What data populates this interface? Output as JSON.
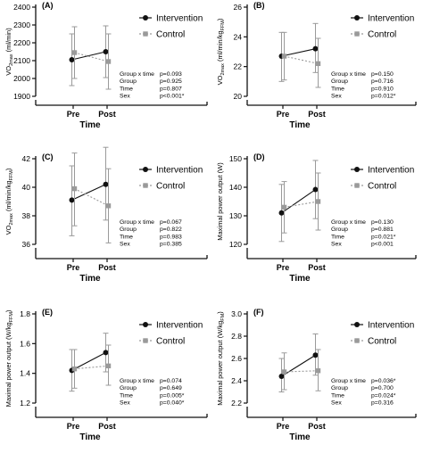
{
  "figure": {
    "accent_colors": {
      "intervention": "#111111",
      "control": "#9a9a9a",
      "error_bars": "#9a9a9a"
    }
  },
  "chart_data": [
    {
      "panel": "(A)",
      "type": "line",
      "ylabel": "VO2max (ml/min)",
      "ylabel_main": "VO",
      "ylabel_sub": "2max",
      "ylabel_rest": " (ml/min)",
      "ylim": [
        1900,
        2400
      ],
      "yticks": [
        "1900",
        "2000",
        "2100",
        "2200",
        "2300",
        "2400"
      ],
      "categories": [
        "Pre",
        "Post"
      ],
      "xlabel": "Time",
      "series": [
        {
          "name": "Intervention",
          "values": [
            2105,
            2150
          ],
          "err_low": [
            1960,
            2005
          ],
          "err_high": [
            2250,
            2295
          ]
        },
        {
          "name": "Control",
          "values": [
            2145,
            2095
          ],
          "err_low": [
            2000,
            1940
          ],
          "err_high": [
            2290,
            2250
          ]
        }
      ],
      "stats": [
        {
          "label": "Group x time",
          "value": "p=0.093"
        },
        {
          "label": "Group",
          "value": "p=0.925"
        },
        {
          "label": "Time",
          "value": "p=0.807"
        },
        {
          "label": "Sex",
          "value": "p<0.001*"
        }
      ],
      "legend": "top-right",
      "grid": false
    },
    {
      "panel": "(B)",
      "type": "line",
      "ylabel": "VO2max (ml/min/kgFFM)",
      "ylabel_main": "VO",
      "ylabel_sub": "2max",
      "ylabel_rest": " (ml/min/kg",
      "ylabel_sub2": "FFM",
      "ylabel_end": ")",
      "ylim": [
        20,
        26
      ],
      "yticks": [
        "20",
        "22",
        "24",
        "26"
      ],
      "categories": [
        "Pre",
        "Post"
      ],
      "xlabel": "Time",
      "series": [
        {
          "name": "Intervention",
          "values": [
            22.7,
            23.2
          ],
          "err_low": [
            21.0,
            21.6
          ],
          "err_high": [
            24.3,
            24.9
          ]
        },
        {
          "name": "Control",
          "values": [
            22.7,
            22.2
          ],
          "err_low": [
            21.1,
            20.6
          ],
          "err_high": [
            24.3,
            23.9
          ]
        }
      ],
      "stats": [
        {
          "label": "Group x time",
          "value": "p=0.150"
        },
        {
          "label": "Group",
          "value": "p=0.716"
        },
        {
          "label": "Time",
          "value": "p=0.910"
        },
        {
          "label": "Sex",
          "value": "p=0.012*"
        }
      ],
      "legend": "top-right",
      "grid": false
    },
    {
      "panel": "(C)",
      "type": "line",
      "ylabel": "VO2max (ml/min/kgFFM)",
      "ylabel_main": "VO",
      "ylabel_sub": "2max",
      "ylabel_rest": " (ml/min/kg",
      "ylabel_sub2": "FFM",
      "ylabel_end": ")",
      "ylim": [
        36,
        42
      ],
      "yticks": [
        "36",
        "38",
        "40",
        "42"
      ],
      "categories": [
        "Pre",
        "Post"
      ],
      "xlabel": "Time",
      "series": [
        {
          "name": "Intervention",
          "values": [
            39.1,
            40.2
          ],
          "err_low": [
            36.6,
            37.7
          ],
          "err_high": [
            41.5,
            42.8
          ]
        },
        {
          "name": "Control",
          "values": [
            39.9,
            38.7
          ],
          "err_low": [
            37.3,
            36.1
          ],
          "err_high": [
            42.4,
            41.3
          ]
        }
      ],
      "stats": [
        {
          "label": "Group x time",
          "value": "p=0.067"
        },
        {
          "label": "Group",
          "value": "p=0.822"
        },
        {
          "label": "Time",
          "value": "p=0.983"
        },
        {
          "label": "Sex",
          "value": "p=0.385"
        }
      ],
      "legend": "top-right",
      "grid": false
    },
    {
      "panel": "(D)",
      "type": "line",
      "ylabel": "Maximal power output (W)",
      "ylim": [
        120,
        150
      ],
      "yticks": [
        "120",
        "130",
        "140",
        "150"
      ],
      "categories": [
        "Pre",
        "Post"
      ],
      "xlabel": "Time",
      "series": [
        {
          "name": "Intervention",
          "values": [
            131.0,
            139.2
          ],
          "err_low": [
            121.0,
            129.0
          ],
          "err_high": [
            141.0,
            149.4
          ]
        },
        {
          "name": "Control",
          "values": [
            133.0,
            135.0
          ],
          "err_low": [
            124.0,
            125.0
          ],
          "err_high": [
            142.0,
            145.0
          ]
        }
      ],
      "stats": [
        {
          "label": "Group x time",
          "value": "p=0.130"
        },
        {
          "label": "Group",
          "value": "p=0.881"
        },
        {
          "label": "Time",
          "value": "p=0.021*"
        },
        {
          "label": "Sex",
          "value": "p<0.001"
        }
      ],
      "legend": "top-right",
      "grid": false
    },
    {
      "panel": "(E)",
      "type": "line",
      "ylabel": "Maximal power output (W/kgFFM)",
      "ylabel_main": "Maximal power output (W/kg",
      "ylabel_sub": "FFM",
      "ylabel_rest": ")",
      "ylim": [
        1.2,
        1.8
      ],
      "yticks": [
        "1.2",
        "1.4",
        "1.6",
        "1.8"
      ],
      "categories": [
        "Pre",
        "Post"
      ],
      "xlabel": "Time",
      "series": [
        {
          "name": "Intervention",
          "values": [
            1.42,
            1.54
          ],
          "err_low": [
            1.28,
            1.41
          ],
          "err_high": [
            1.56,
            1.67
          ]
        },
        {
          "name": "Control",
          "values": [
            1.43,
            1.45
          ],
          "err_low": [
            1.3,
            1.32
          ],
          "err_high": [
            1.56,
            1.59
          ]
        }
      ],
      "stats": [
        {
          "label": "Group x time",
          "value": "p=0.074"
        },
        {
          "label": "Group",
          "value": "p=0.649"
        },
        {
          "label": "Time",
          "value": "p=0.005*"
        },
        {
          "label": "Sex",
          "value": "p=0.040*"
        }
      ],
      "legend": "top-right",
      "grid": false
    },
    {
      "panel": "(F)",
      "type": "line",
      "ylabel": "Maximal power output (W/kgFM)",
      "ylabel_main": "Maximal power output (W/kg",
      "ylabel_sub": "FM",
      "ylabel_rest": ")",
      "ylim": [
        2.2,
        3.0
      ],
      "yticks": [
        "2.2",
        "2.4",
        "2.6",
        "2.8",
        "3.0"
      ],
      "categories": [
        "Pre",
        "Post"
      ],
      "xlabel": "Time",
      "series": [
        {
          "name": "Intervention",
          "values": [
            2.44,
            2.63
          ],
          "err_low": [
            2.3,
            2.45
          ],
          "err_high": [
            2.6,
            2.82
          ]
        },
        {
          "name": "Control",
          "values": [
            2.48,
            2.49
          ],
          "err_low": [
            2.32,
            2.31
          ],
          "err_high": [
            2.65,
            2.68
          ]
        }
      ],
      "stats": [
        {
          "label": "Group x time",
          "value": "p=0.036*"
        },
        {
          "label": "Group",
          "value": "p=0.700"
        },
        {
          "label": "Time",
          "value": "p=0.024*"
        },
        {
          "label": "Sex",
          "value": "p=0.316"
        }
      ],
      "legend": "top-right",
      "grid": false
    }
  ]
}
